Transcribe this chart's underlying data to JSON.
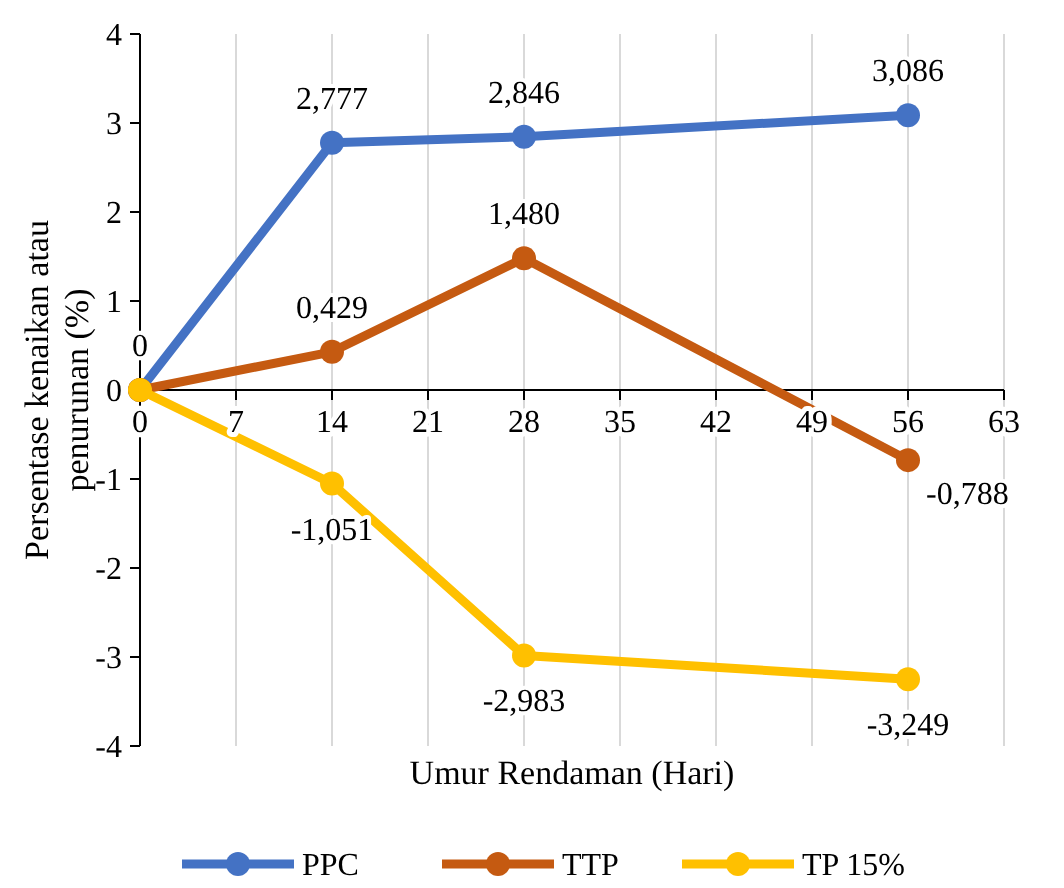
{
  "chart_data": {
    "type": "line",
    "xlabel": "Umur Rendaman (Hari)",
    "ylabel": "Persentase kenaikan atau penurunan (%)",
    "x": [
      0,
      14,
      28,
      56
    ],
    "xlim": [
      0,
      63
    ],
    "xticks": [
      0,
      7,
      14,
      21,
      28,
      35,
      42,
      49,
      56,
      63
    ],
    "ylim": [
      -4,
      4
    ],
    "yticks": [
      -4,
      -3,
      -2,
      -1,
      0,
      1,
      2,
      3,
      4
    ],
    "grid": "x",
    "legend": "bottom",
    "marker": "circle",
    "line_style": "solid",
    "series": [
      {
        "name": "PPC",
        "color": "#4472c4",
        "values": [
          0,
          2.777,
          2.846,
          3.086
        ],
        "value_labels": [
          "0",
          "2,777",
          "2,846",
          "3,086"
        ]
      },
      {
        "name": "TTP",
        "color": "#c55a11",
        "values": [
          0,
          0.429,
          1.48,
          -0.788
        ],
        "value_labels": [
          null,
          "0,429",
          "1,480",
          "-0,788"
        ]
      },
      {
        "name": "TP 15%",
        "color": "#ffc000",
        "values": [
          0,
          -1.051,
          -2.983,
          -3.249
        ],
        "value_labels": [
          null,
          "-1,051",
          "-2,983",
          "-3,249"
        ]
      }
    ]
  }
}
